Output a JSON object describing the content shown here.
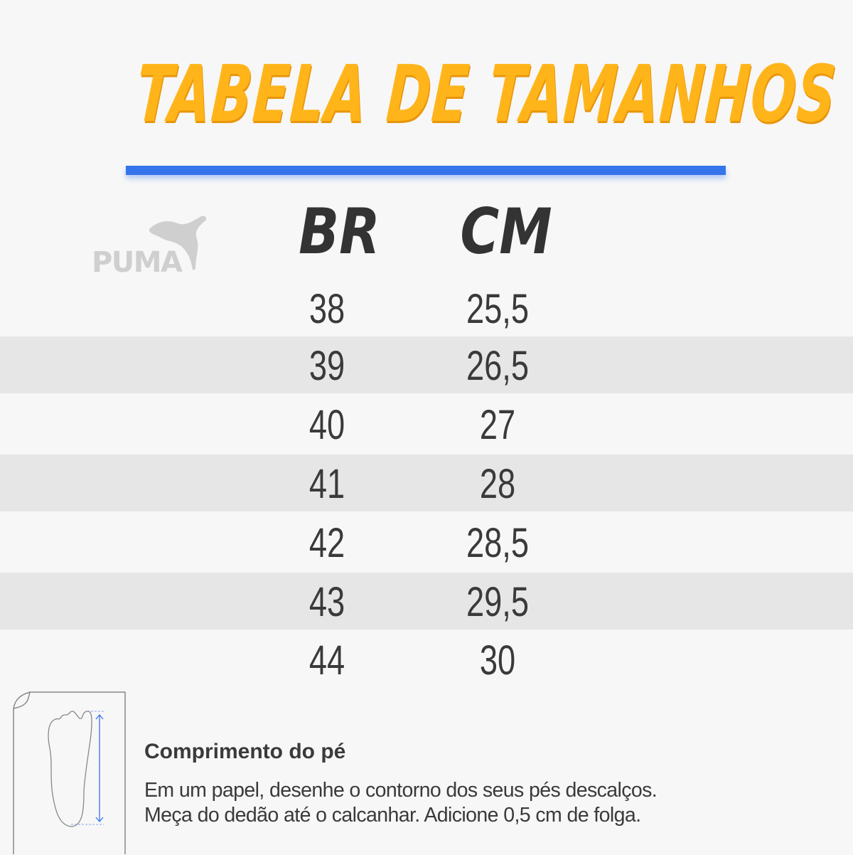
{
  "title": "TABELA DE TAMANHOS",
  "brand": "PUMA",
  "colors": {
    "title": "#ffb51a",
    "accent_bar": "#3674ec",
    "row_alt": "#e6e6e6",
    "text": "#3a3a3a"
  },
  "table": {
    "headers": [
      "BR",
      "CM"
    ],
    "rows": [
      {
        "br": "38",
        "cm": "25,5"
      },
      {
        "br": "39",
        "cm": "26,5"
      },
      {
        "br": "40",
        "cm": "27"
      },
      {
        "br": "41",
        "cm": "28"
      },
      {
        "br": "42",
        "cm": "28,5"
      },
      {
        "br": "43",
        "cm": "29,5"
      },
      {
        "br": "44",
        "cm": "30"
      }
    ]
  },
  "foot": {
    "icon": "foot-measure-icon",
    "title": "Comprimento do pé",
    "line1": "Em um papel, desenhe o contorno dos seus pés descalços.",
    "line2": "Meça do dedão até o calcanhar. Adicione 0,5 cm de folga."
  }
}
